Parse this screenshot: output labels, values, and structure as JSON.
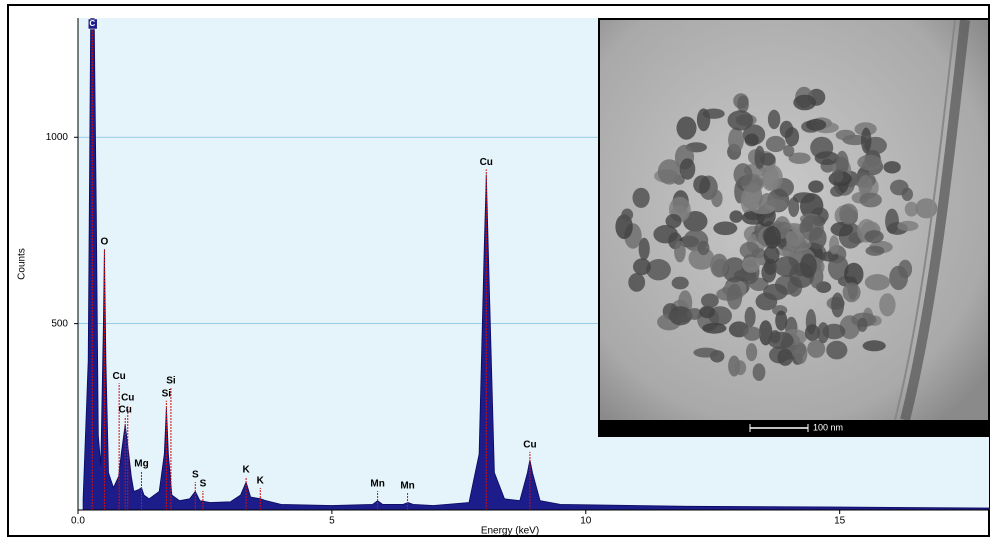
{
  "chart_data": {
    "type": "area",
    "x_label": "Energy (keV)",
    "y_label": "Counts",
    "xlim": [
      0,
      18
    ],
    "ylim": [
      0,
      1320
    ],
    "xticks": [
      {
        "value": 0,
        "label": "0.0"
      },
      5,
      10,
      15
    ],
    "yticks": [
      500,
      1000
    ],
    "grid": true,
    "color": "#1c1c8a",
    "x": [
      0.1,
      0.2,
      0.25,
      0.28,
      0.32,
      0.36,
      0.4,
      0.45,
      0.5,
      0.52,
      0.55,
      0.6,
      0.65,
      0.7,
      0.8,
      0.85,
      0.93,
      1.0,
      1.05,
      1.1,
      1.2,
      1.25,
      1.3,
      1.4,
      1.6,
      1.7,
      1.74,
      1.78,
      1.85,
      2.0,
      2.2,
      2.31,
      2.4,
      2.6,
      3.0,
      3.2,
      3.31,
      3.4,
      3.6,
      3.7,
      4.0,
      5.0,
      5.8,
      5.9,
      6.0,
      6.4,
      6.5,
      6.6,
      7.0,
      7.7,
      7.9,
      8.0,
      8.04,
      8.1,
      8.2,
      8.4,
      8.7,
      8.85,
      8.9,
      8.95,
      9.1,
      9.5,
      12,
      15,
      18
    ],
    "values": [
      30,
      400,
      1320,
      1320,
      1320,
      800,
      200,
      120,
      500,
      700,
      400,
      100,
      80,
      60,
      90,
      150,
      230,
      150,
      90,
      50,
      55,
      60,
      40,
      30,
      50,
      150,
      275,
      150,
      40,
      25,
      30,
      50,
      25,
      20,
      22,
      40,
      75,
      35,
      30,
      25,
      15,
      12,
      15,
      25,
      15,
      15,
      20,
      15,
      12,
      20,
      150,
      700,
      900,
      600,
      100,
      30,
      25,
      100,
      135,
      100,
      25,
      15,
      10,
      8,
      5
    ],
    "annotations": [
      {
        "text": "C",
        "energy": 0.28,
        "counts": 1300
      },
      {
        "text": "O",
        "energy": 0.52,
        "counts": 700
      },
      {
        "text": "Cu",
        "energy": 0.81,
        "counts": 340
      },
      {
        "text": "Cu",
        "energy": 0.98,
        "counts": 282
      },
      {
        "text": "Cu",
        "energy": 0.93,
        "counts": 250
      },
      {
        "text": "Si",
        "energy": 1.83,
        "counts": 328
      },
      {
        "text": "Si",
        "energy": 1.74,
        "counts": 293
      },
      {
        "text": "Mg",
        "energy": 1.25,
        "counts": 105
      },
      {
        "text": "S",
        "energy": 2.31,
        "counts": 75
      },
      {
        "text": "S",
        "energy": 2.46,
        "counts": 51
      },
      {
        "text": "K",
        "energy": 3.31,
        "counts": 89
      },
      {
        "text": "K",
        "energy": 3.59,
        "counts": 59
      },
      {
        "text": "Mn",
        "energy": 5.9,
        "counts": 51
      },
      {
        "text": "Mn",
        "energy": 6.49,
        "counts": 46
      },
      {
        "text": "Cu",
        "energy": 8.04,
        "counts": 914
      },
      {
        "text": "Cu",
        "energy": 8.9,
        "counts": 156
      }
    ],
    "inset_scale_label": "100 nm"
  }
}
